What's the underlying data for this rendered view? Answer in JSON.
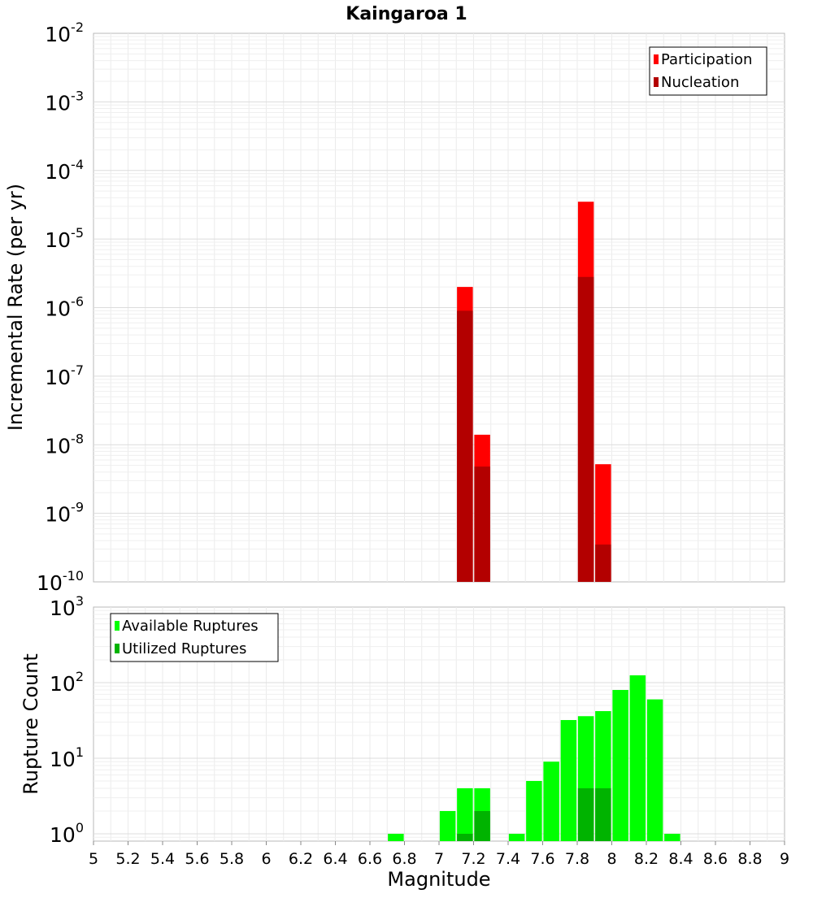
{
  "chart_data": [
    {
      "type": "bar",
      "title": "Kaingaroa 1",
      "xlabel": "",
      "ylabel": "Incremental Rate (per yr)",
      "yscale": "log",
      "ylim": [
        1e-10,
        0.01
      ],
      "xlim": [
        5,
        9
      ],
      "grid": true,
      "legend_position": "top-right",
      "y_ticks": [
        {
          "base": "10",
          "exp": "-2"
        },
        {
          "base": "10",
          "exp": "-3"
        },
        {
          "base": "10",
          "exp": "-4"
        },
        {
          "base": "10",
          "exp": "-5"
        },
        {
          "base": "10",
          "exp": "-6"
        },
        {
          "base": "10",
          "exp": "-7"
        },
        {
          "base": "10",
          "exp": "-8"
        },
        {
          "base": "10",
          "exp": "-9"
        },
        {
          "base": "10",
          "exp": "-10"
        }
      ],
      "series": [
        {
          "name": "Participation",
          "color": "#ff0000",
          "points": [
            {
              "x": 7.15,
              "y": 2e-06
            },
            {
              "x": 7.25,
              "y": 1.4e-08
            },
            {
              "x": 7.85,
              "y": 3.5e-05
            },
            {
              "x": 7.95,
              "y": 5.2e-09
            }
          ]
        },
        {
          "name": "Nucleation",
          "color": "#b30000",
          "points": [
            {
              "x": 7.15,
              "y": 9e-07
            },
            {
              "x": 7.25,
              "y": 4.8e-09
            },
            {
              "x": 7.85,
              "y": 2.8e-06
            },
            {
              "x": 7.95,
              "y": 3.5e-10
            }
          ]
        }
      ]
    },
    {
      "type": "bar",
      "title": "",
      "xlabel": "Magnitude",
      "ylabel": "Rupture Count",
      "yscale": "log",
      "ylim": [
        0.8,
        1000
      ],
      "xlim": [
        5,
        9
      ],
      "grid": true,
      "legend_position": "top-left",
      "x_ticks": [
        "5",
        "5.2",
        "5.4",
        "5.6",
        "5.8",
        "6",
        "6.2",
        "6.4",
        "6.6",
        "6.8",
        "7",
        "7.2",
        "7.4",
        "7.6",
        "7.8",
        "8",
        "8.2",
        "8.4",
        "8.6",
        "8.8",
        "9"
      ],
      "y_ticks": [
        {
          "base": "10",
          "exp": "3"
        },
        {
          "base": "10",
          "exp": "2"
        },
        {
          "base": "10",
          "exp": "1"
        },
        {
          "base": "10",
          "exp": "0"
        }
      ],
      "series": [
        {
          "name": "Available Ruptures",
          "color": "#00ff00",
          "points": [
            {
              "x": 6.75,
              "y": 1
            },
            {
              "x": 7.05,
              "y": 2
            },
            {
              "x": 7.15,
              "y": 4
            },
            {
              "x": 7.25,
              "y": 4
            },
            {
              "x": 7.45,
              "y": 1
            },
            {
              "x": 7.55,
              "y": 5
            },
            {
              "x": 7.65,
              "y": 9
            },
            {
              "x": 7.75,
              "y": 32
            },
            {
              "x": 7.85,
              "y": 36
            },
            {
              "x": 7.95,
              "y": 42
            },
            {
              "x": 8.05,
              "y": 80
            },
            {
              "x": 8.15,
              "y": 125
            },
            {
              "x": 8.25,
              "y": 60
            },
            {
              "x": 8.35,
              "y": 1
            }
          ]
        },
        {
          "name": "Utilized Ruptures",
          "color": "#00b300",
          "points": [
            {
              "x": 7.15,
              "y": 1
            },
            {
              "x": 7.25,
              "y": 2
            },
            {
              "x": 7.85,
              "y": 4
            },
            {
              "x": 7.95,
              "y": 4
            }
          ]
        }
      ]
    }
  ]
}
